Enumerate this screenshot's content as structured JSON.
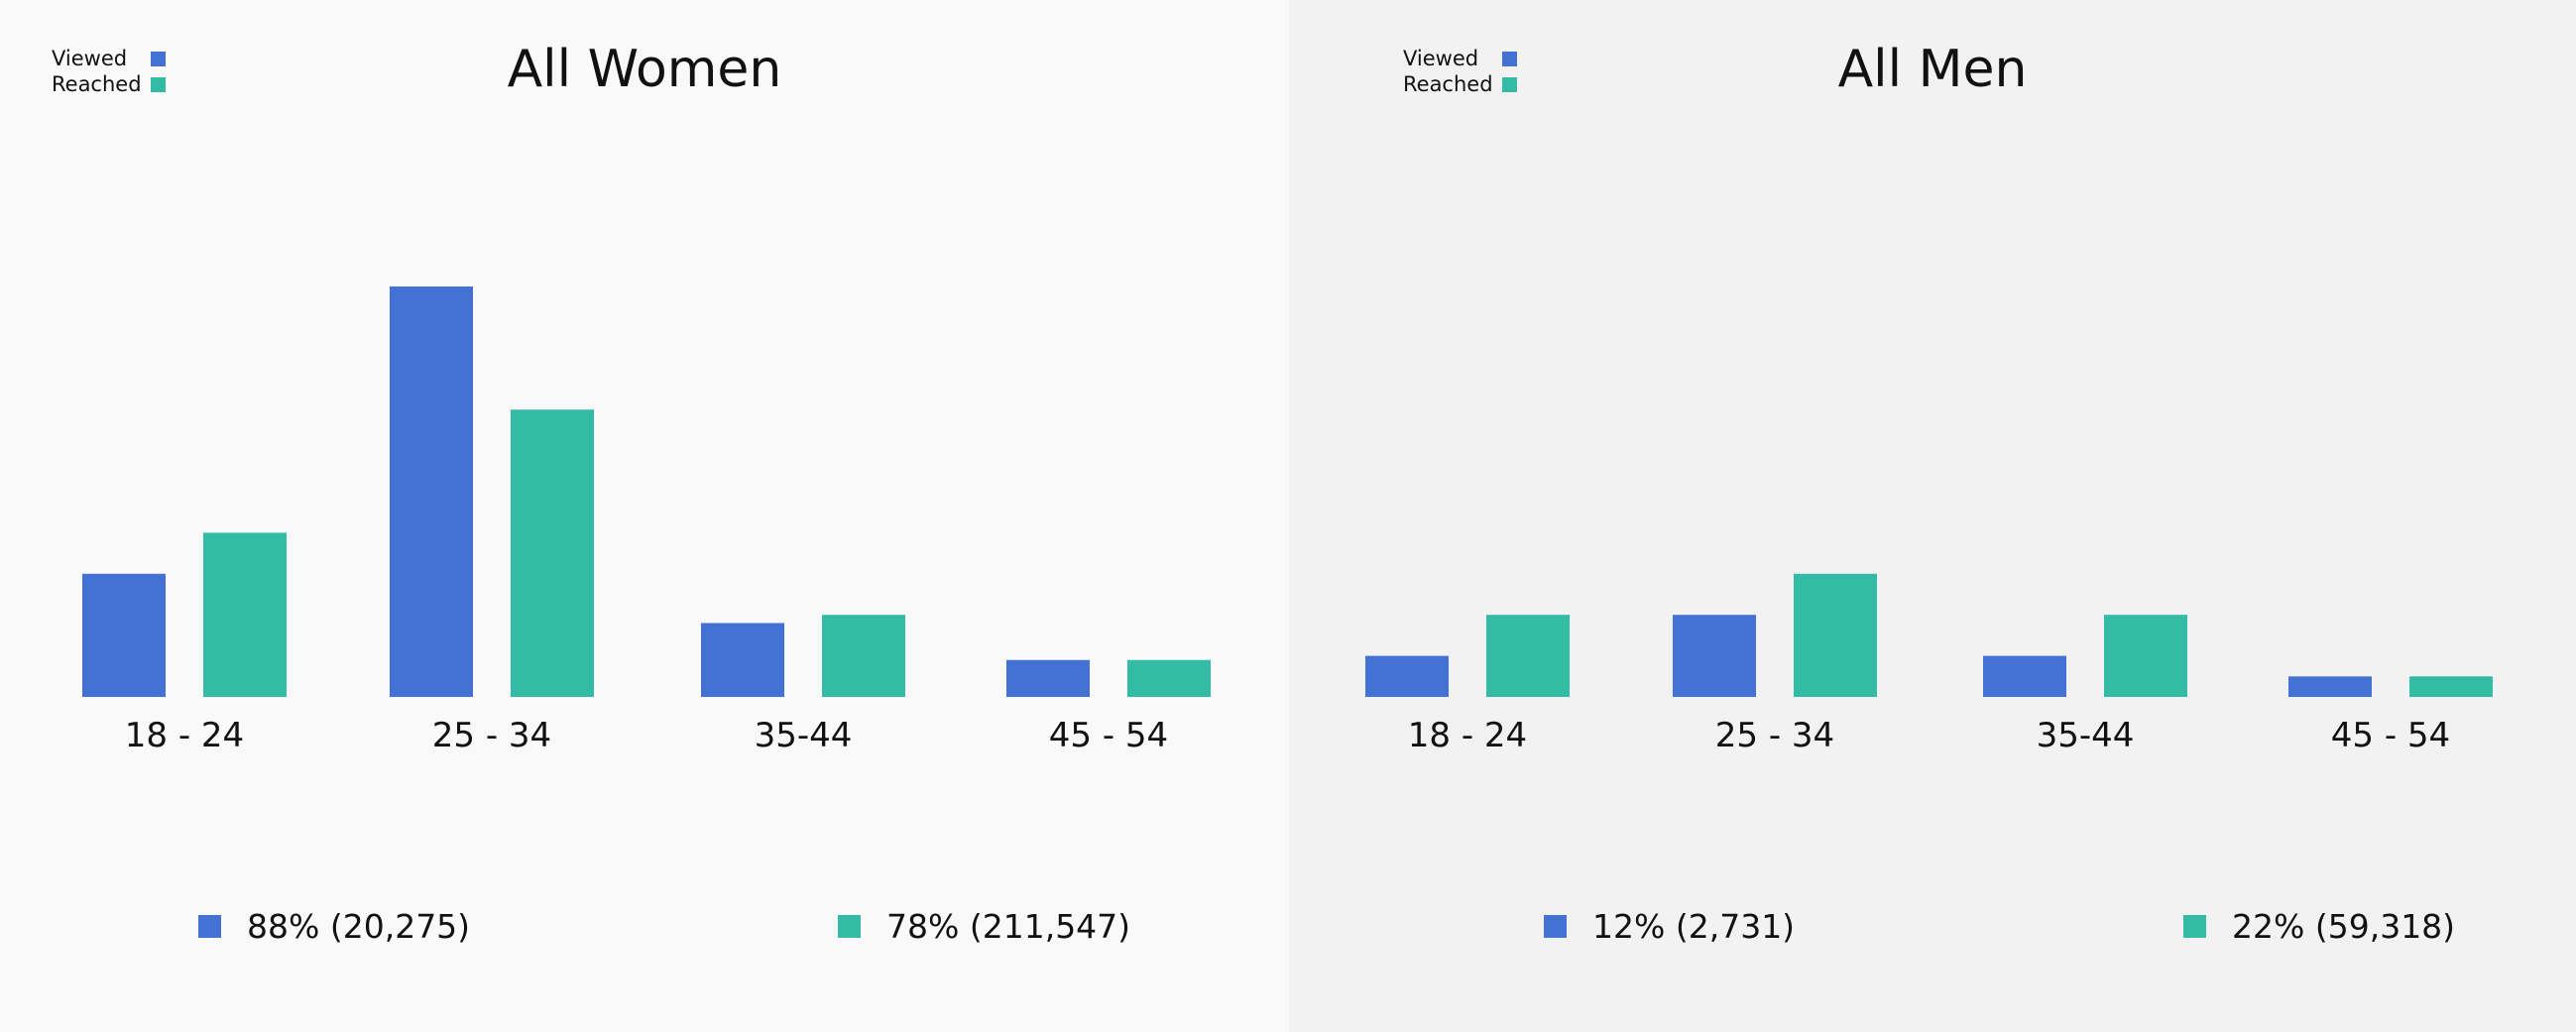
{
  "colors": {
    "viewed": "#4472d4",
    "reached": "#33bba6"
  },
  "legend": {
    "viewed_label": "Viewed",
    "reached_label": "Reached"
  },
  "chart_data": [
    {
      "type": "bar",
      "title": "All Women",
      "categories": [
        "18 - 24",
        "25 - 34",
        "35-44",
        "45 - 54"
      ],
      "series": [
        {
          "name": "Viewed",
          "values": [
            3,
            10,
            1.8,
            0.9
          ]
        },
        {
          "name": "Reached",
          "values": [
            4,
            7,
            2,
            0.9
          ]
        }
      ],
      "ylim": [
        0,
        10
      ],
      "legend_position": "top-left",
      "summary": [
        {
          "series": "Viewed",
          "text": "88% (20,275)"
        },
        {
          "series": "Reached",
          "text": "78% (211,547)"
        }
      ]
    },
    {
      "type": "bar",
      "title": "All Men",
      "categories": [
        "18 - 24",
        "25 - 34",
        "35-44",
        "45 - 54"
      ],
      "series": [
        {
          "name": "Viewed",
          "values": [
            1,
            2,
            1,
            0.5
          ]
        },
        {
          "name": "Reached",
          "values": [
            2,
            3,
            2,
            0.5
          ]
        }
      ],
      "ylim": [
        0,
        10
      ],
      "legend_position": "top-left",
      "summary": [
        {
          "series": "Viewed",
          "text": "12% (2,731)"
        },
        {
          "series": "Reached",
          "text": "22% (59,318)"
        }
      ]
    }
  ]
}
